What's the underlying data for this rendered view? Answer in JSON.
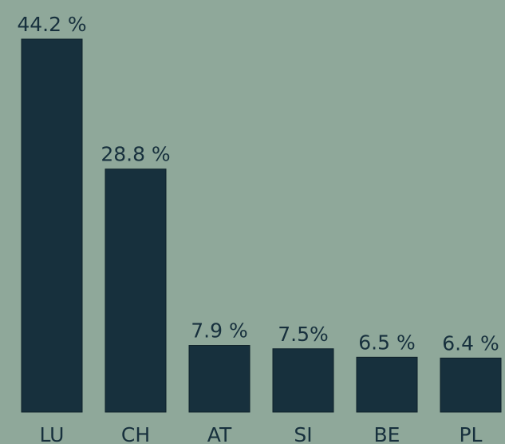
{
  "chart_data": {
    "type": "bar",
    "categories": [
      "LU",
      "CH",
      "AT",
      "SI",
      "BE",
      "PL"
    ],
    "values": [
      44.2,
      28.8,
      7.9,
      7.5,
      6.5,
      6.4
    ],
    "value_labels": [
      "44.2 %",
      "28.8 %",
      "7.9 %",
      "7.5%",
      "6.5 %",
      "6.4 %"
    ],
    "color": "#17303d"
  }
}
